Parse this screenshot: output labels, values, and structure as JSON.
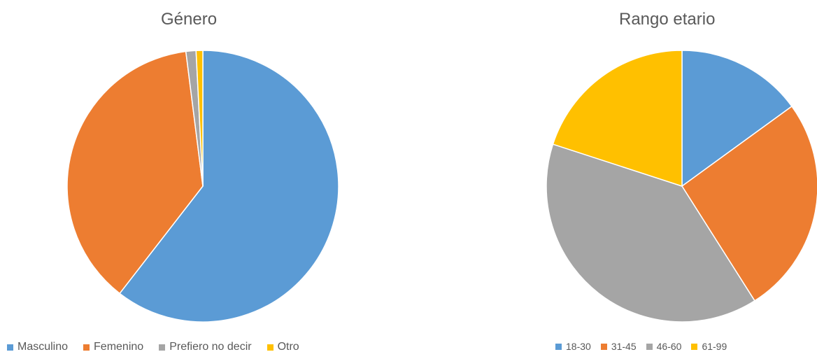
{
  "chart_data": [
    {
      "type": "pie",
      "title": "Género",
      "categories": [
        "Masculino",
        "Femenino",
        "Prefiero no decir",
        "Otro"
      ],
      "values": [
        60.5,
        37.5,
        1.2,
        0.8
      ],
      "colors": [
        "#5B9BD5",
        "#ED7D31",
        "#A5A5A5",
        "#FFC000"
      ],
      "start_angle_deg": 0,
      "direction": "clockwise",
      "legend_position": "bottom"
    },
    {
      "type": "pie",
      "title": "Rango etario",
      "categories": [
        "18-30",
        "31-45",
        "46-60",
        "61-99"
      ],
      "values": [
        15,
        26,
        39,
        20
      ],
      "colors": [
        "#5B9BD5",
        "#ED7D31",
        "#A5A5A5",
        "#FFC000"
      ],
      "start_angle_deg": 0,
      "direction": "clockwise",
      "legend_position": "bottom"
    }
  ]
}
